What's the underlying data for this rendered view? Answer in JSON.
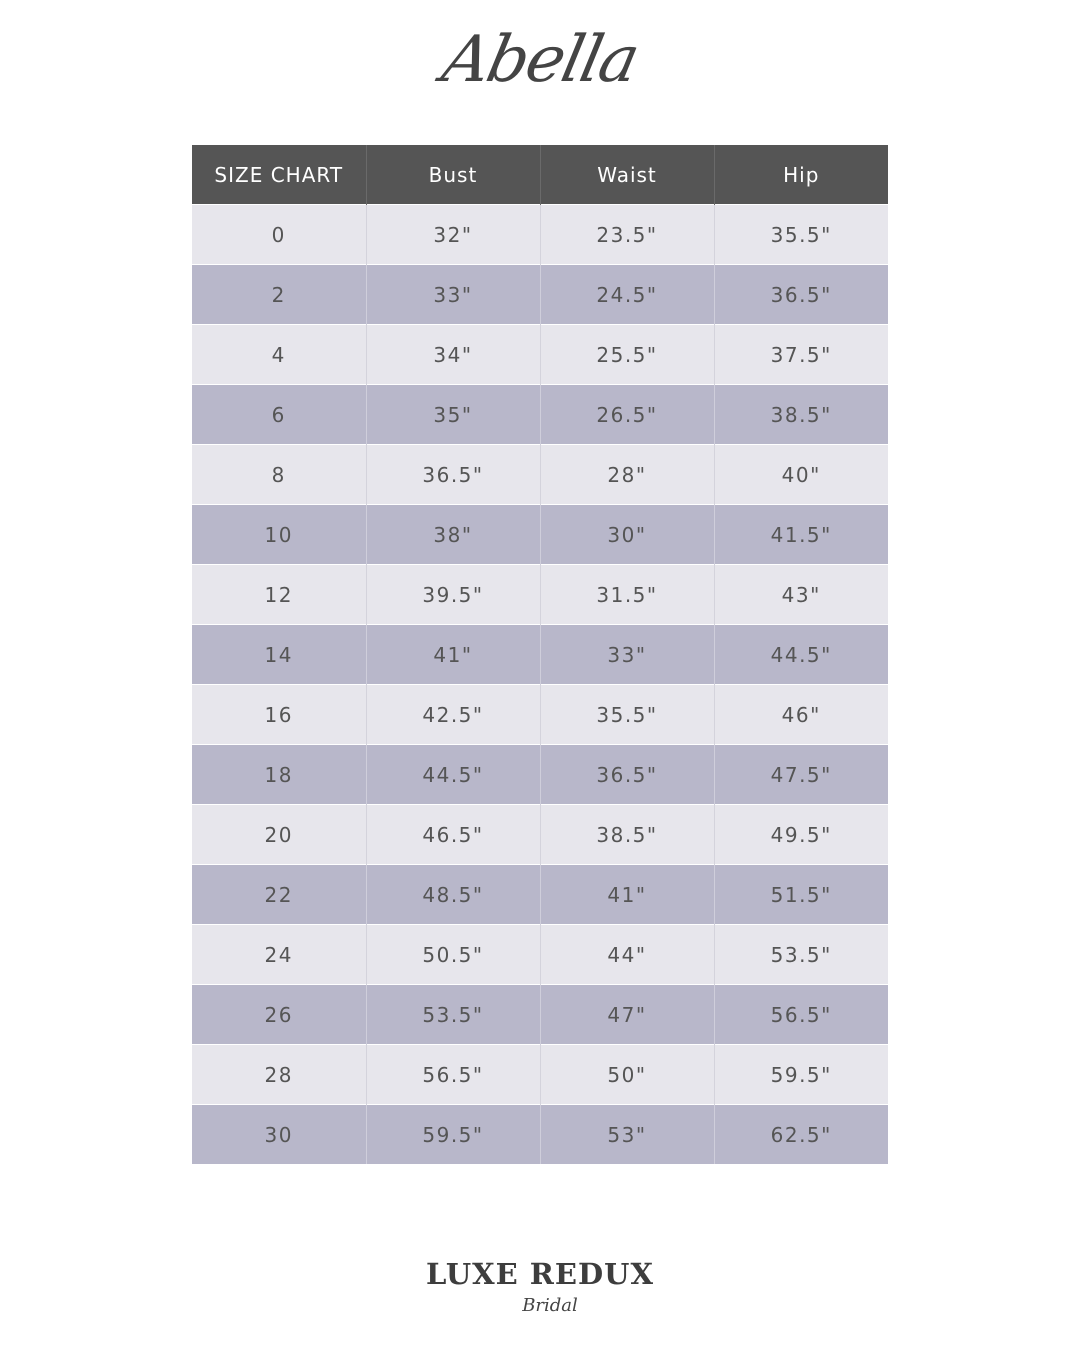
{
  "title": "Abella",
  "table": {
    "headers": [
      "SIZE CHART",
      "Bust",
      "Waist",
      "Hip"
    ],
    "rows": [
      [
        "0",
        "32\"",
        "23.5\"",
        "35.5\""
      ],
      [
        "2",
        "33\"",
        "24.5\"",
        "36.5\""
      ],
      [
        "4",
        "34\"",
        "25.5\"",
        "37.5\""
      ],
      [
        "6",
        "35\"",
        "26.5\"",
        "38.5\""
      ],
      [
        "8",
        "36.5\"",
        "28\"",
        "40\""
      ],
      [
        "10",
        "38\"",
        "30\"",
        "41.5\""
      ],
      [
        "12",
        "39.5\"",
        "31.5\"",
        "43\""
      ],
      [
        "14",
        "41\"",
        "33\"",
        "44.5\""
      ],
      [
        "16",
        "42.5\"",
        "35.5\"",
        "46\""
      ],
      [
        "18",
        "44.5\"",
        "36.5\"",
        "47.5\""
      ],
      [
        "20",
        "46.5\"",
        "38.5\"",
        "49.5\""
      ],
      [
        "22",
        "48.5\"",
        "41\"",
        "51.5\""
      ],
      [
        "24",
        "50.5\"",
        "44\"",
        "53.5\""
      ],
      [
        "26",
        "53.5\"",
        "47\"",
        "56.5\""
      ],
      [
        "28",
        "56.5\"",
        "50\"",
        "59.5\""
      ],
      [
        "30",
        "59.5\"",
        "53\"",
        "62.5\""
      ]
    ]
  },
  "logo": {
    "main": "LUXE REDUX",
    "sub": "Bridal"
  },
  "colors": {
    "header": "#555555",
    "row_light": "#e7e6ec",
    "row_dark": "#b8b7ca"
  }
}
